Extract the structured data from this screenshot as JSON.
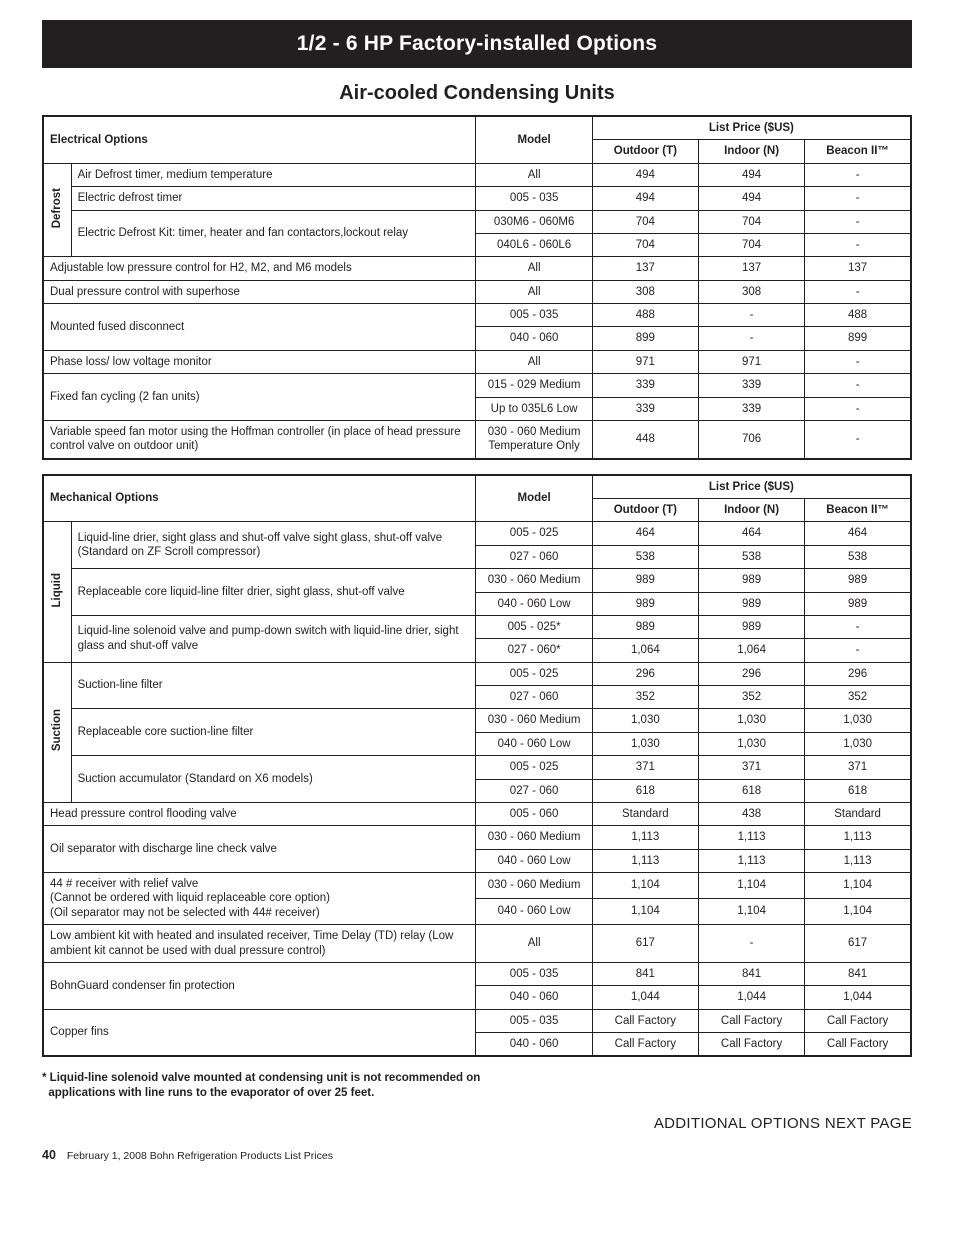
{
  "banner": "1/2 - 6 HP Factory-installed Options",
  "subtitle": "Air-cooled Condensing Units",
  "priceHeader": "List Price ($US)",
  "modelHeader": "Model",
  "cols": {
    "outdoor": "Outdoor (T)",
    "indoor": "Indoor (N)",
    "beacon": "Beacon II™"
  },
  "electrical": {
    "title": "Electrical Options",
    "defrostLabel": "Defrost",
    "rows": [
      {
        "desc": "Air Defrost timer, medium temperature",
        "model": "All",
        "outdoor": "494",
        "indoor": "494",
        "beacon": "-"
      },
      {
        "desc": "Electric defrost timer",
        "model": "005 - 035",
        "outdoor": "494",
        "indoor": "494",
        "beacon": "-"
      },
      {
        "desc": "Electric Defrost Kit: timer, heater and fan contactors,lockout relay",
        "model": "030M6 - 060M6",
        "outdoor": "704",
        "indoor": "704",
        "beacon": "-"
      },
      {
        "desc": "",
        "model": "040L6 - 060L6",
        "outdoor": "704",
        "indoor": "704",
        "beacon": "-"
      },
      {
        "desc": "Adjustable low pressure control for H2, M2, and M6 models",
        "model": "All",
        "outdoor": "137",
        "indoor": "137",
        "beacon": "137"
      },
      {
        "desc": "Dual pressure control with superhose",
        "model": "All",
        "outdoor": "308",
        "indoor": "308",
        "beacon": "-"
      },
      {
        "desc": "Mounted fused disconnect",
        "model": "005 - 035",
        "outdoor": "488",
        "indoor": "-",
        "beacon": "488"
      },
      {
        "desc": "",
        "model": "040 - 060",
        "outdoor": "899",
        "indoor": "-",
        "beacon": "899"
      },
      {
        "desc": "Phase loss/ low voltage monitor",
        "model": "All",
        "outdoor": "971",
        "indoor": "971",
        "beacon": "-"
      },
      {
        "desc": "Fixed fan cycling (2 fan units)",
        "model": "015 - 029 Medium",
        "outdoor": "339",
        "indoor": "339",
        "beacon": "-"
      },
      {
        "desc": "",
        "model": "Up to 035L6 Low",
        "outdoor": "339",
        "indoor": "339",
        "beacon": "-"
      },
      {
        "desc": "Variable speed fan motor using the Hoffman controller (in place of head pressure control valve on outdoor unit)",
        "model": "030 - 060 Medium Temperature Only",
        "outdoor": "448",
        "indoor": "706",
        "beacon": "-"
      }
    ]
  },
  "mechanical": {
    "title": "Mechanical Options",
    "liquidLabel": "Liquid",
    "suctionLabel": "Suction",
    "rows": [
      {
        "desc": "Liquid-line drier, sight glass and shut-off valve sight glass, shut-off valve (Standard on ZF Scroll compressor)",
        "model": "005 - 025",
        "outdoor": "464",
        "indoor": "464",
        "beacon": "464"
      },
      {
        "desc": "",
        "model": "027 - 060",
        "outdoor": "538",
        "indoor": "538",
        "beacon": "538"
      },
      {
        "desc": "Replaceable core liquid-line filter drier, sight glass, shut-off valve",
        "model": "030 - 060 Medium",
        "outdoor": "989",
        "indoor": "989",
        "beacon": "989"
      },
      {
        "desc": "",
        "model": "040 - 060 Low",
        "outdoor": "989",
        "indoor": "989",
        "beacon": "989"
      },
      {
        "desc": "Liquid-line solenoid valve and pump-down switch with liquid-line drier, sight glass and shut-off valve",
        "model": "005 - 025*",
        "outdoor": "989",
        "indoor": "989",
        "beacon": "-"
      },
      {
        "desc": "",
        "model": "027 - 060*",
        "outdoor": "1,064",
        "indoor": "1,064",
        "beacon": "-"
      },
      {
        "desc": "Suction-line filter",
        "model": "005 - 025",
        "outdoor": "296",
        "indoor": "296",
        "beacon": "296"
      },
      {
        "desc": "",
        "model": "027 - 060",
        "outdoor": "352",
        "indoor": "352",
        "beacon": "352"
      },
      {
        "desc": "Replaceable core suction-line filter",
        "model": "030 - 060 Medium",
        "outdoor": "1,030",
        "indoor": "1,030",
        "beacon": "1,030"
      },
      {
        "desc": "",
        "model": "040 - 060 Low",
        "outdoor": "1,030",
        "indoor": "1,030",
        "beacon": "1,030"
      },
      {
        "desc": "Suction accumulator (Standard on X6 models)",
        "model": "005 - 025",
        "outdoor": "371",
        "indoor": "371",
        "beacon": "371"
      },
      {
        "desc": "",
        "model": "027 - 060",
        "outdoor": "618",
        "indoor": "618",
        "beacon": "618"
      },
      {
        "desc": "Head pressure control flooding valve",
        "model": "005 - 060",
        "outdoor": "Standard",
        "indoor": "438",
        "beacon": "Standard"
      },
      {
        "desc": "Oil separator with discharge line check valve",
        "model": "030 - 060 Medium",
        "outdoor": "1,113",
        "indoor": "1,113",
        "beacon": "1,113"
      },
      {
        "desc": "",
        "model": "040 - 060 Low",
        "outdoor": "1,113",
        "indoor": "1,113",
        "beacon": "1,113"
      },
      {
        "desc": "44 # receiver with relief valve\n(Cannot be ordered with liquid replaceable core option)\n(Oil separator may not be selected with 44# receiver)",
        "model": "030 - 060 Medium",
        "outdoor": "1,104",
        "indoor": "1,104",
        "beacon": "1,104"
      },
      {
        "desc": "",
        "model": "040 - 060 Low",
        "outdoor": "1,104",
        "indoor": "1,104",
        "beacon": "1,104"
      },
      {
        "desc": "Low ambient kit with heated and insulated receiver, Time Delay (TD) relay (Low ambient kit cannot be used with dual pressure control)",
        "model": "All",
        "outdoor": "617",
        "indoor": "-",
        "beacon": "617"
      },
      {
        "desc": "BohnGuard condenser fin protection",
        "model": "005 - 035",
        "outdoor": "841",
        "indoor": "841",
        "beacon": "841"
      },
      {
        "desc": "",
        "model": "040 - 060",
        "outdoor": "1,044",
        "indoor": "1,044",
        "beacon": "1,044"
      },
      {
        "desc": "Copper fins",
        "model": "005 - 035",
        "outdoor": "Call Factory",
        "indoor": "Call Factory",
        "beacon": "Call Factory"
      },
      {
        "desc": "",
        "model": "040 - 060",
        "outdoor": "Call Factory",
        "indoor": "Call Factory",
        "beacon": "Call Factory"
      }
    ]
  },
  "footnote1": "* Liquid-line solenoid valve mounted at condensing unit is not recommended on",
  "footnote2": "  applications with line runs to the evaporator of over 25 feet.",
  "nextPage": "ADDITIONAL OPTIONS NEXT PAGE",
  "pageNumber": "40",
  "footerText": "February 1, 2008 Bohn Refrigeration Products List Prices"
}
